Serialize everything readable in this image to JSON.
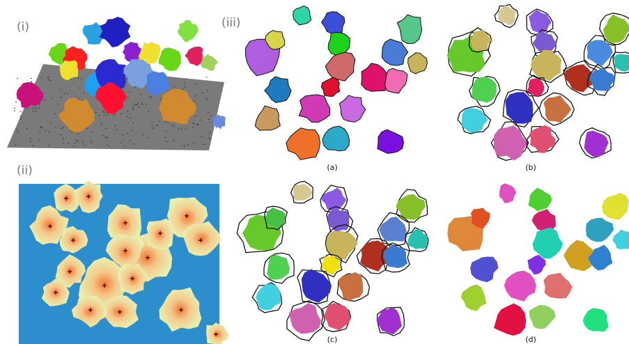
{
  "labels": {
    "i": "(i)",
    "ii": "(ii)",
    "iii": "(iii)"
  },
  "subfigures": [
    "(a)",
    "(b)",
    "(c)",
    "(d)"
  ]
}
